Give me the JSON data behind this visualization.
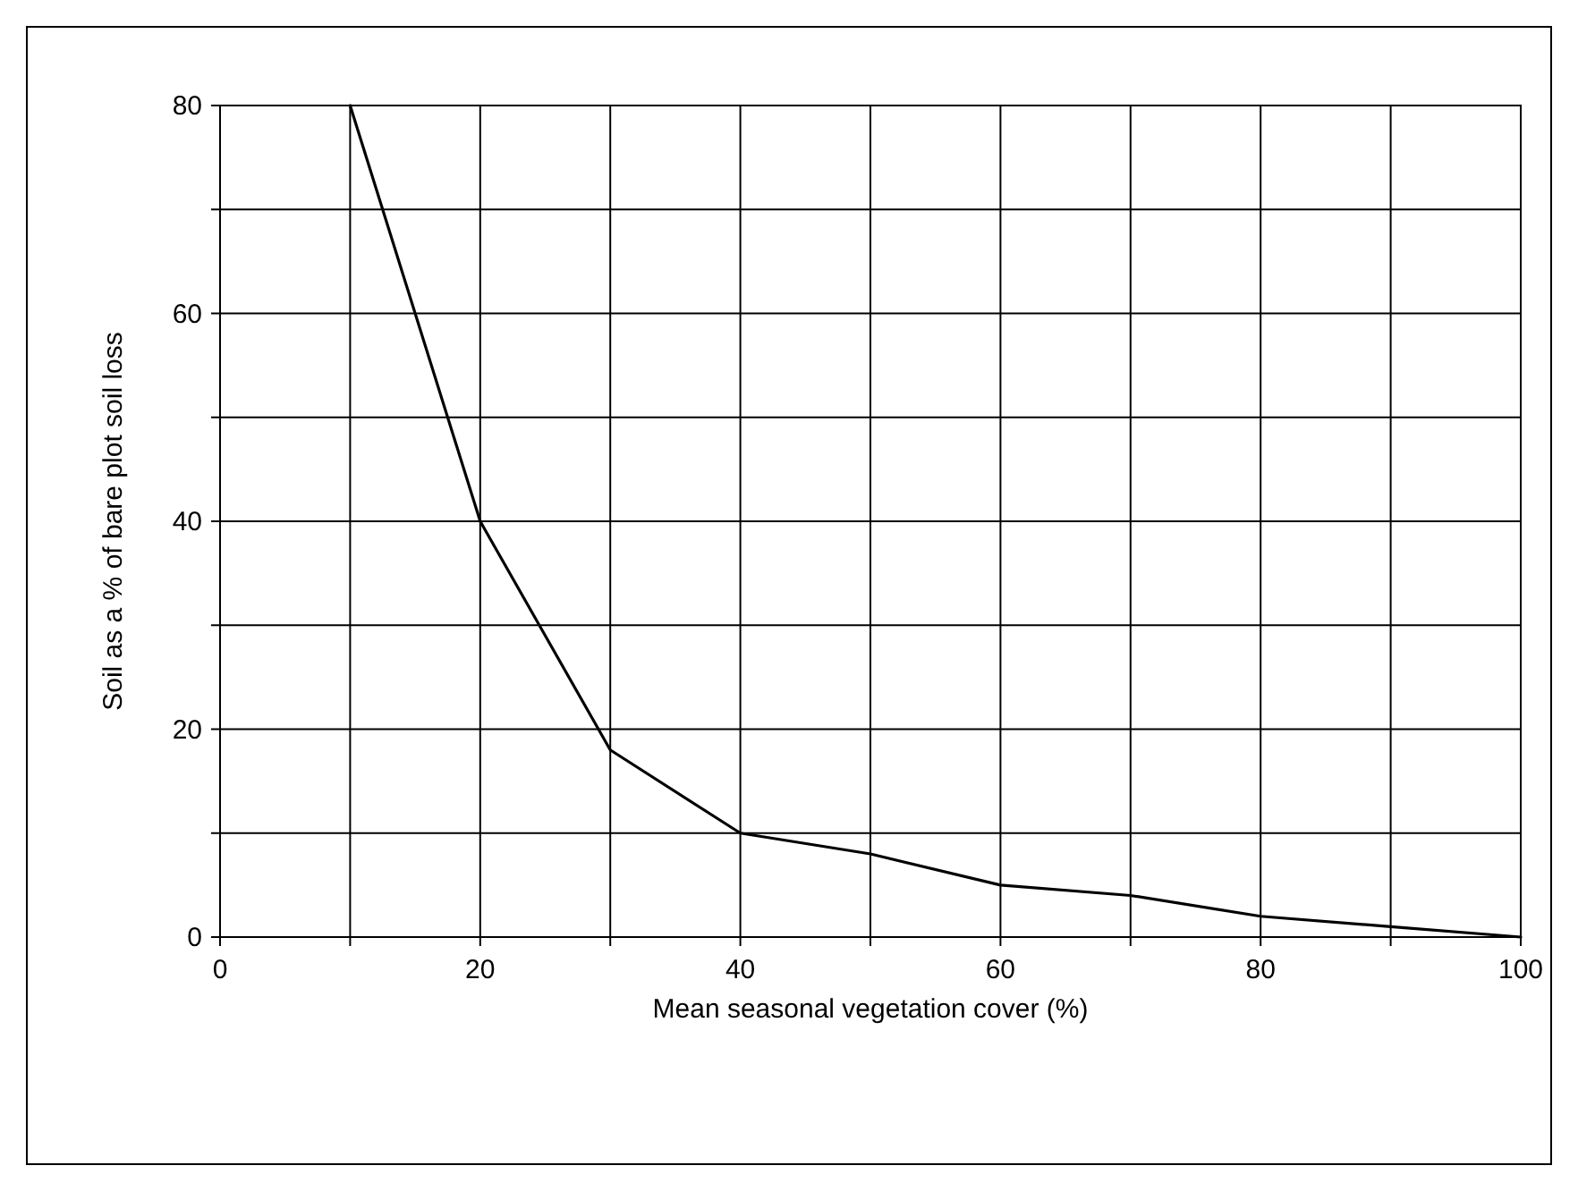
{
  "chart_data": {
    "type": "line",
    "xlabel": "Mean seasonal vegetation cover (%)",
    "ylabel": "Soil as a % of bare plot soil loss",
    "x": [
      10,
      20,
      30,
      40,
      50,
      60,
      70,
      80,
      90,
      100
    ],
    "series": [
      {
        "color": "#000000",
        "values": [
          80,
          40,
          18,
          10,
          8,
          5,
          4,
          2,
          1,
          0
        ]
      }
    ],
    "xlim": [
      0,
      100
    ],
    "ylim": [
      0,
      80
    ],
    "xticks": [
      0,
      {
        "value": 10,
        "label": null
      },
      20,
      {
        "value": 30,
        "label": null
      },
      40,
      {
        "value": 50,
        "label": null
      },
      60,
      {
        "value": 70,
        "label": null
      },
      80,
      {
        "value": 90,
        "label": null
      },
      100
    ],
    "yticks": [
      0,
      {
        "value": 10,
        "label": null
      },
      20,
      {
        "value": 30,
        "label": null
      },
      40,
      {
        "value": 50,
        "label": null
      },
      60,
      {
        "value": 70,
        "label": null
      },
      80
    ],
    "grid": true,
    "marker": "none",
    "line_style": "solid"
  }
}
